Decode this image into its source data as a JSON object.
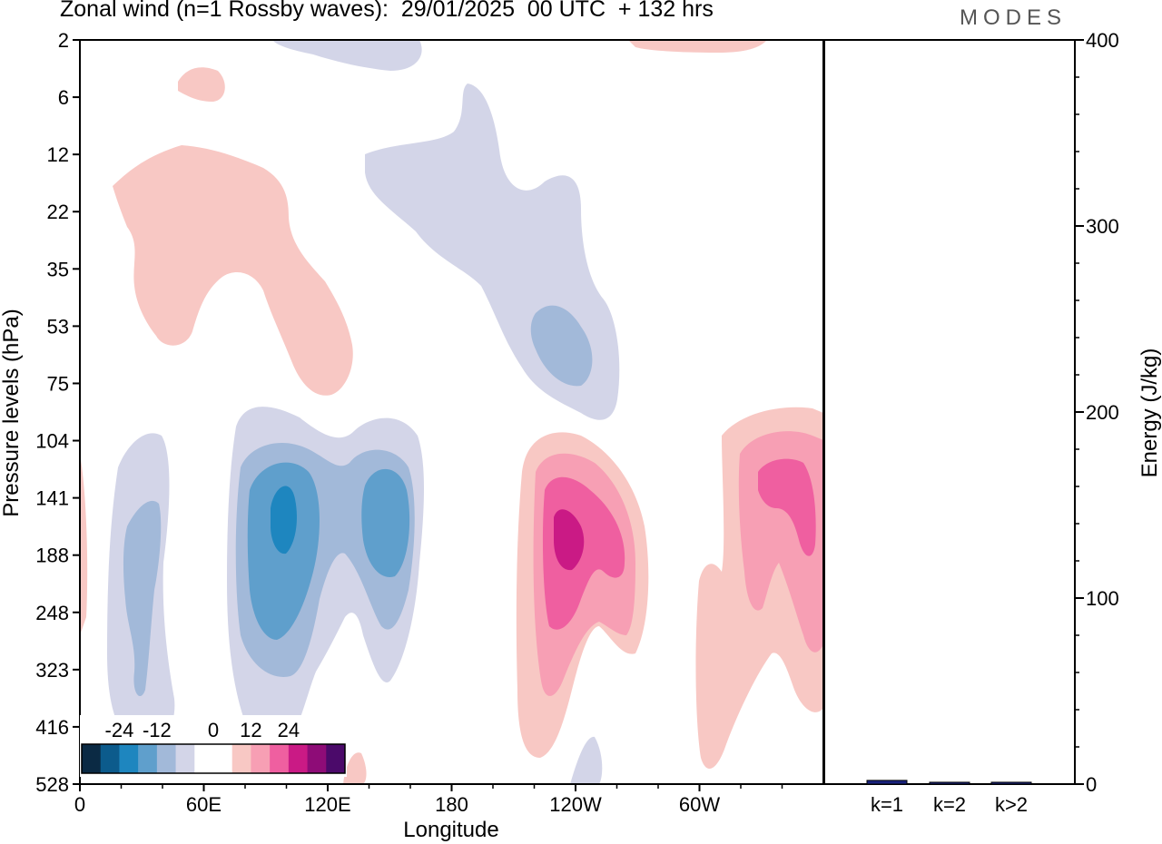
{
  "header": {
    "title": "Zonal wind (n=1 Rossby waves):  29/01/2025  00 UTC  + 132 hrs",
    "brand": "MODES"
  },
  "chart_data": [
    {
      "type": "heatmap",
      "title": "Zonal wind (n=1 Rossby waves):  29/01/2025  00 UTC  + 132 hrs",
      "xlabel": "Longitude",
      "ylabel": "Pressure levels (hPa)",
      "x_ticks": [
        "0",
        "60E",
        "120E",
        "180",
        "120W",
        "60W"
      ],
      "y_ticks": [
        "2",
        "6",
        "12",
        "22",
        "35",
        "53",
        "75",
        "104",
        "141",
        "188",
        "248",
        "323",
        "416",
        "528"
      ],
      "colorbar": {
        "labels": [
          "-24",
          "-12",
          "0",
          "12",
          "24"
        ],
        "colors": [
          "#0b2a44",
          "#0c5b8c",
          "#1e86bf",
          "#5f9fcc",
          "#a2b9d9",
          "#d3d5e8",
          "#ffffff",
          "#ffffff",
          "#f8c8c4",
          "#f79fb4",
          "#ef5fa0",
          "#ca1a85",
          "#8e0c77",
          "#4b0a6a"
        ]
      },
      "regions": [
        {
          "name": "weak-easterly-upper",
          "sign": "negative",
          "level": 1
        },
        {
          "name": "easterly-core-upper",
          "sign": "negative",
          "level": 2
        },
        {
          "name": "westerly-upper-west",
          "sign": "positive",
          "level": 1
        },
        {
          "name": "easterly-lower-west",
          "sign": "negative",
          "level": 4
        },
        {
          "name": "easterly-lower-center",
          "sign": "negative",
          "level": 4
        },
        {
          "name": "westerly-lower-center",
          "sign": "positive",
          "level": 4
        },
        {
          "name": "westerly-lower-east",
          "sign": "positive",
          "level": 3
        }
      ]
    },
    {
      "type": "bar",
      "categories": [
        "k=1",
        "k=2",
        "k>2"
      ],
      "values": [
        2,
        1,
        1
      ],
      "ylabel": "Energy (J/kg)",
      "ylim": [
        0,
        400
      ],
      "y_ticks": [
        "0",
        "100",
        "200",
        "300",
        "400"
      ],
      "color": "#1a237e"
    }
  ]
}
